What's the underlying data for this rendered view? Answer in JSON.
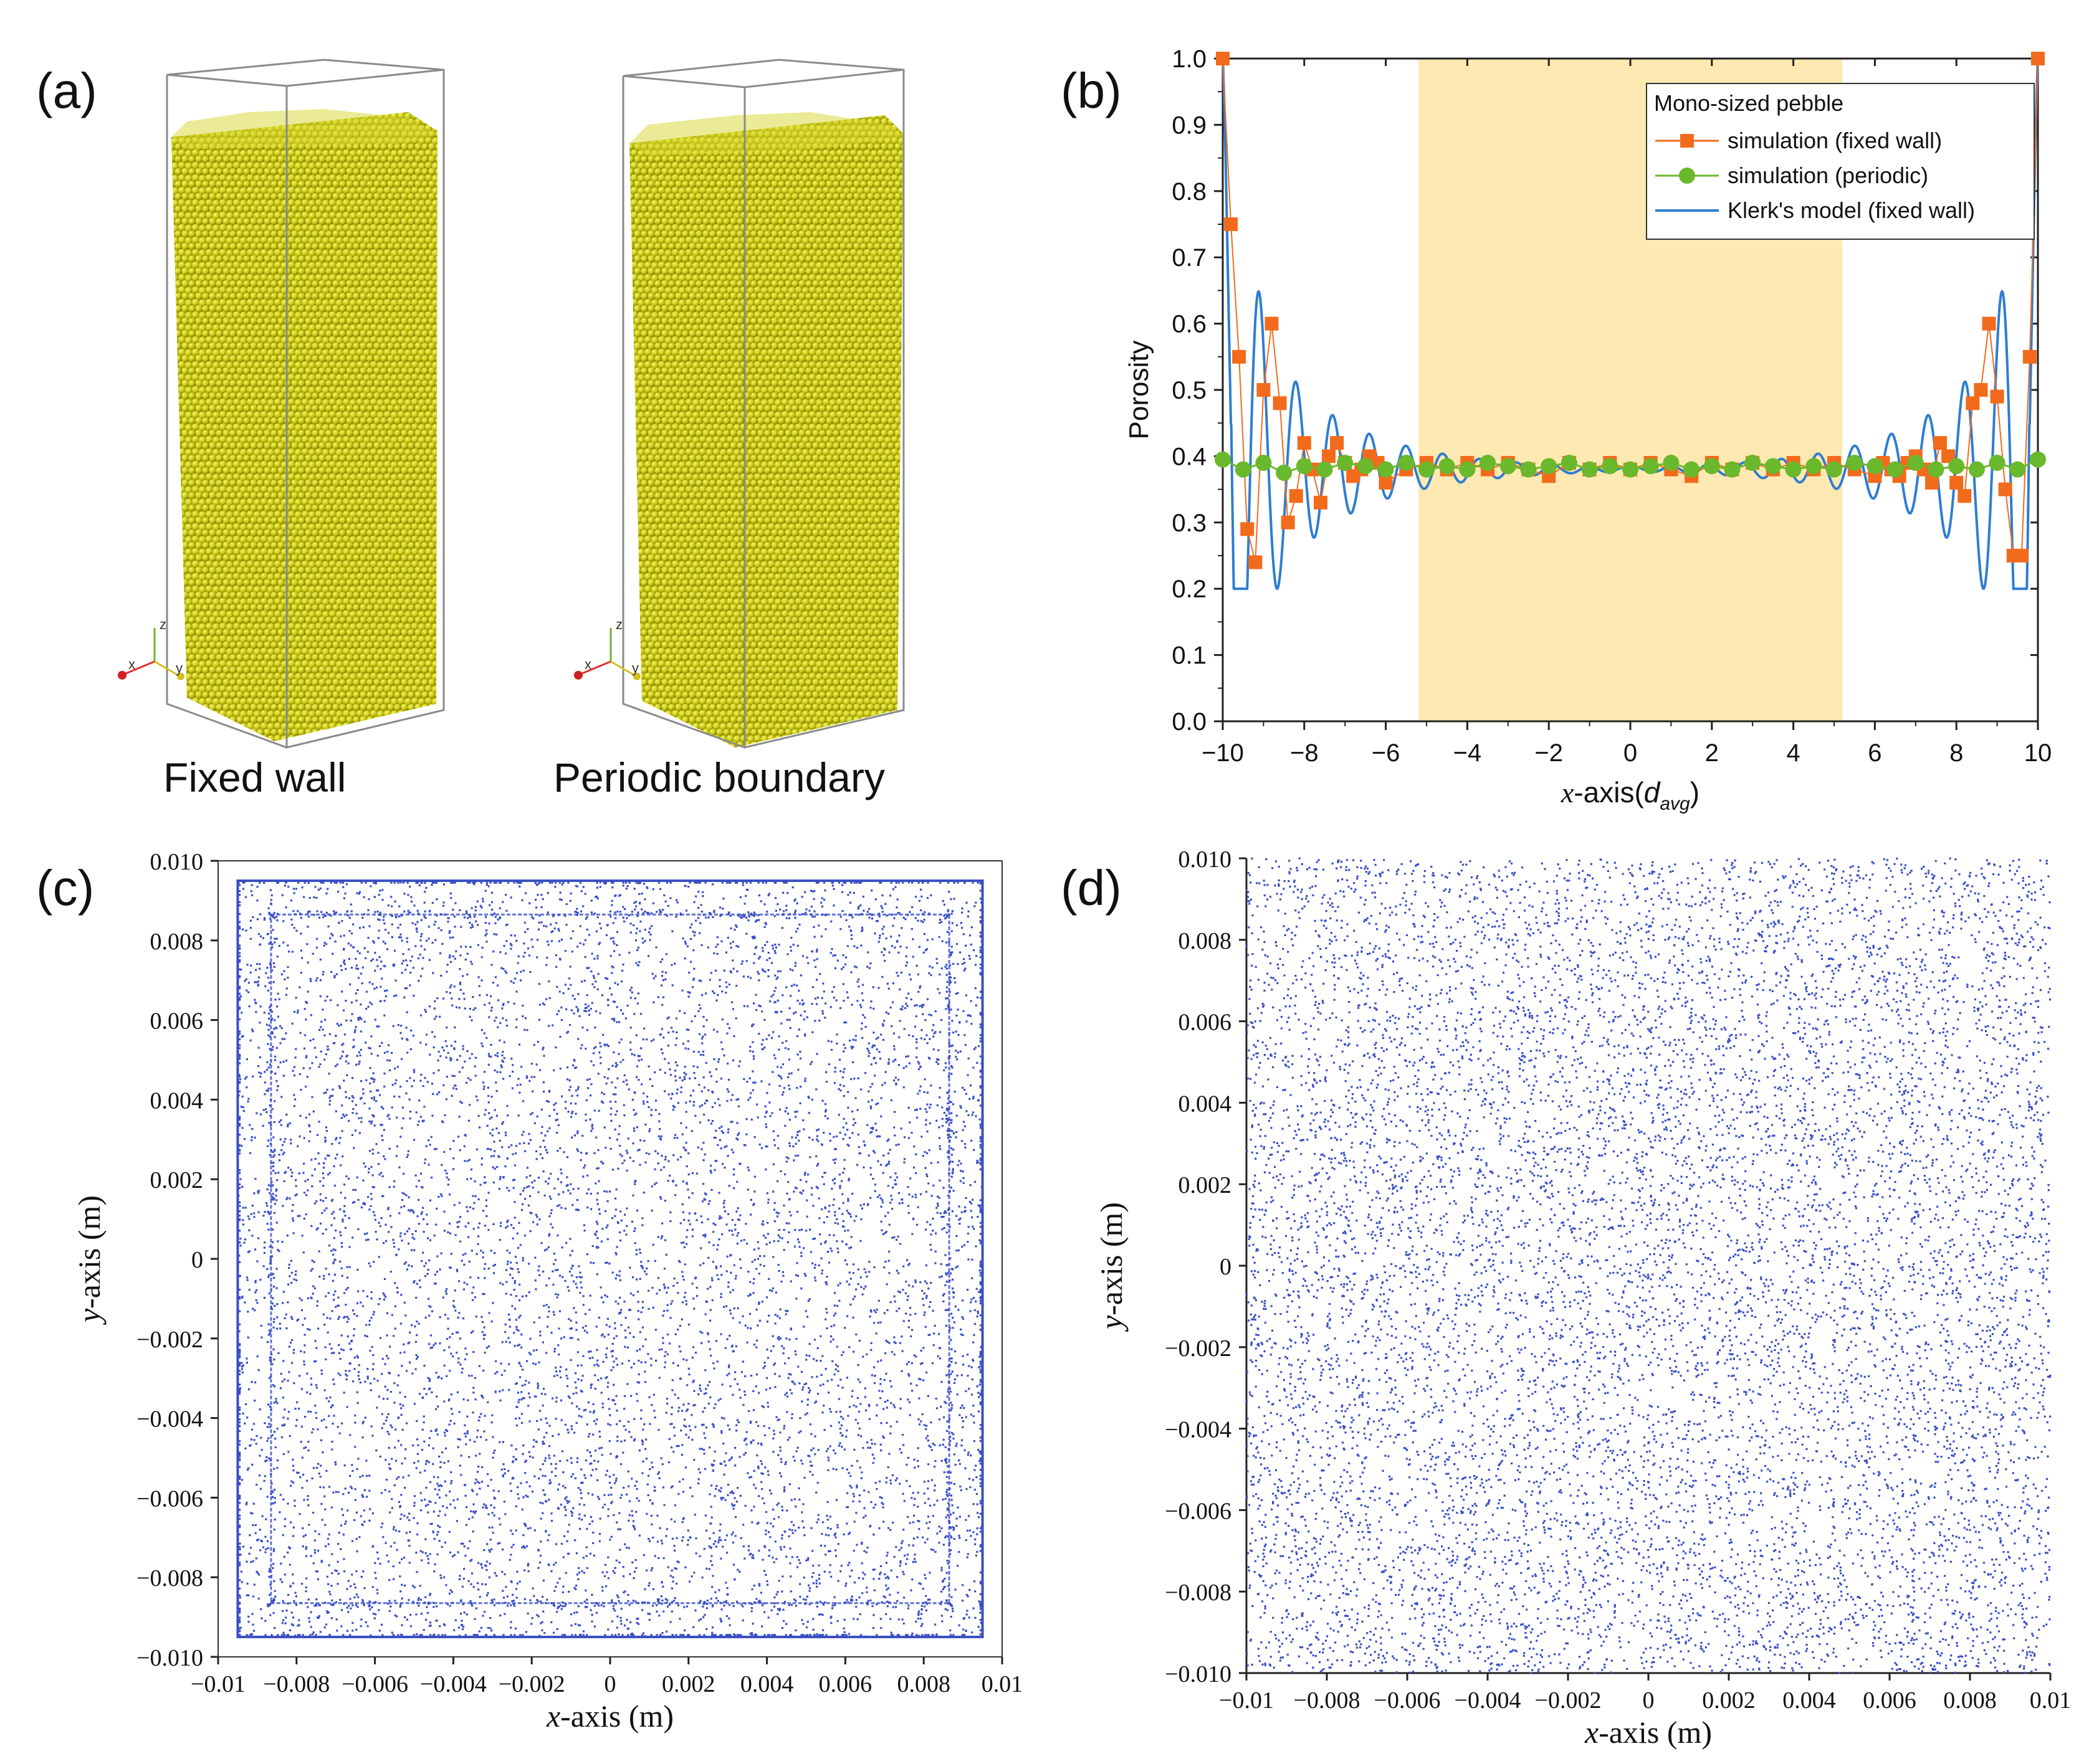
{
  "panels": {
    "a": "(a)",
    "b": "(b)",
    "c": "(c)",
    "d": "(d)"
  },
  "fig_a": {
    "caption_left": "Fixed wall",
    "caption_right": "Periodic boundary",
    "axis_x": "x",
    "axis_y": "y",
    "axis_z": "z",
    "colors": {
      "pebble": "#c8c814",
      "pebble_light": "#eaea3c",
      "pebble_dark": "#8e8c00",
      "box": "#8a8a8a"
    }
  },
  "chart_data": [
    {
      "id": "b",
      "type": "line",
      "ylabel": "Porosity",
      "xlabel_main": "x",
      "xlabel_rest": "-axis(",
      "xlabel_sub_d": "d",
      "xlabel_sub": "avg",
      "xlabel_close": ")",
      "xlim": [
        -10,
        10
      ],
      "ylim": [
        0,
        1.0
      ],
      "xticks": [
        -10,
        -8,
        -6,
        -4,
        -2,
        0,
        2,
        4,
        6,
        8,
        10
      ],
      "xtick_labels": [
        "−10",
        "−8",
        "−6",
        "−4",
        "−2",
        "0",
        "2",
        "4",
        "6",
        "8",
        "10"
      ],
      "yticks": [
        0,
        0.1,
        0.2,
        0.3,
        0.4,
        0.5,
        0.6,
        0.7,
        0.8,
        0.9,
        1.0
      ],
      "ytick_labels": [
        "0.0",
        "0.1",
        "0.2",
        "0.3",
        "0.4",
        "0.5",
        "0.6",
        "0.7",
        "0.8",
        "0.9",
        "1.0"
      ],
      "shaded_region": [
        -5.2,
        5.2
      ],
      "shade_color": "#fde9b1",
      "legend_title": "Mono-sized pebble",
      "legend_position": "top-right",
      "series": [
        {
          "name": "simulation (fixed wall)",
          "color": "#f26b1d",
          "marker": "square",
          "x": [
            -10.0,
            -9.8,
            -9.6,
            -9.4,
            -9.2,
            -9.0,
            -8.8,
            -8.6,
            -8.4,
            -8.2,
            -8.0,
            -7.8,
            -7.6,
            -7.4,
            -7.2,
            -7.0,
            -6.8,
            -6.6,
            -6.4,
            -6.2,
            -6.0,
            -5.5,
            -5.0,
            -4.5,
            -4.0,
            -3.5,
            -3.0,
            -2.5,
            -2.0,
            -1.5,
            -1.0,
            -0.5,
            0.0,
            0.5,
            1.0,
            1.5,
            2.0,
            2.5,
            3.0,
            3.5,
            4.0,
            4.5,
            5.0,
            5.5,
            6.0,
            6.2,
            6.4,
            6.6,
            6.8,
            7.0,
            7.2,
            7.4,
            7.6,
            7.8,
            8.0,
            8.2,
            8.4,
            8.6,
            8.8,
            9.0,
            9.2,
            9.4,
            9.6,
            9.8,
            10.0
          ],
          "y": [
            1.0,
            0.75,
            0.55,
            0.29,
            0.24,
            0.5,
            0.6,
            0.48,
            0.3,
            0.34,
            0.42,
            0.38,
            0.33,
            0.4,
            0.42,
            0.39,
            0.37,
            0.38,
            0.4,
            0.39,
            0.36,
            0.38,
            0.39,
            0.38,
            0.39,
            0.38,
            0.39,
            0.38,
            0.37,
            0.39,
            0.38,
            0.39,
            0.38,
            0.39,
            0.38,
            0.37,
            0.39,
            0.38,
            0.39,
            0.38,
            0.39,
            0.38,
            0.39,
            0.38,
            0.37,
            0.39,
            0.38,
            0.37,
            0.39,
            0.4,
            0.38,
            0.36,
            0.42,
            0.4,
            0.36,
            0.34,
            0.48,
            0.5,
            0.6,
            0.49,
            0.35,
            0.25,
            0.25,
            0.55,
            1.0
          ]
        },
        {
          "name": "simulation (periodic)",
          "color": "#6ab82b",
          "marker": "circle",
          "x": [
            -10.0,
            -9.5,
            -9.0,
            -8.5,
            -8.0,
            -7.5,
            -7.0,
            -6.5,
            -6.0,
            -5.5,
            -5.0,
            -4.5,
            -4.0,
            -3.5,
            -3.0,
            -2.5,
            -2.0,
            -1.5,
            -1.0,
            -0.5,
            0.0,
            0.5,
            1.0,
            1.5,
            2.0,
            2.5,
            3.0,
            3.5,
            4.0,
            4.5,
            5.0,
            5.5,
            6.0,
            6.5,
            7.0,
            7.5,
            8.0,
            8.5,
            9.0,
            9.5,
            10.0
          ],
          "y": [
            0.395,
            0.38,
            0.39,
            0.375,
            0.385,
            0.38,
            0.39,
            0.385,
            0.38,
            0.39,
            0.38,
            0.385,
            0.38,
            0.39,
            0.385,
            0.38,
            0.385,
            0.39,
            0.38,
            0.385,
            0.38,
            0.385,
            0.39,
            0.38,
            0.385,
            0.38,
            0.39,
            0.385,
            0.38,
            0.385,
            0.38,
            0.39,
            0.385,
            0.38,
            0.39,
            0.38,
            0.385,
            0.38,
            0.39,
            0.38,
            0.395
          ]
        },
        {
          "name": "Klerk's model (fixed wall)",
          "color": "#2e7dd1",
          "marker": "none",
          "model": {
            "base": 0.38,
            "wall_value": 1.0,
            "amp": 0.27,
            "decay": 0.45,
            "period": 0.9
          }
        }
      ]
    },
    {
      "id": "c",
      "type": "scatter",
      "ylabel_italic": "y",
      "ylabel_rest": "-axis (m)",
      "xlabel_italic": "x",
      "xlabel_rest": "-axis (m)",
      "xlim": [
        -0.01,
        0.01
      ],
      "ylim": [
        -0.01,
        0.01
      ],
      "xtick_labels": [
        "−0.01",
        "−0.008",
        "−0.006",
        "−0.004",
        "−0.002",
        "0",
        "0.002",
        "0.004",
        "0.006",
        "0.008",
        "0.01"
      ],
      "ytick_labels": [
        "0.010",
        "0.008",
        "0.006",
        "0.004",
        "0.002",
        "0",
        "−0.002",
        "−0.004",
        "−0.006",
        "−0.008",
        "−0.010"
      ],
      "wall_half_width": 0.0095,
      "point_color": "#3a4fc4",
      "description_points": "pebble centres, fixed wall with wall-ordered layers"
    },
    {
      "id": "d",
      "type": "scatter",
      "ylabel_italic": "y",
      "ylabel_rest": "-axis (m)",
      "xlabel_italic": "x",
      "xlabel_rest": "-axis (m)",
      "xlim": [
        -0.01,
        0.01
      ],
      "ylim": [
        -0.01,
        0.01
      ],
      "xtick_labels": [
        "−0.01",
        "−0.008",
        "−0.006",
        "−0.004",
        "−0.002",
        "0",
        "0.002",
        "0.004",
        "0.006",
        "0.008",
        "0.01"
      ],
      "ytick_labels": [
        "0.010",
        "0.008",
        "0.006",
        "0.004",
        "0.002",
        "0",
        "−0.002",
        "−0.004",
        "−0.006",
        "−0.008",
        "−0.010"
      ],
      "point_color": "#3a4fc4",
      "description_points": "pebble centres, periodic boundary"
    }
  ]
}
